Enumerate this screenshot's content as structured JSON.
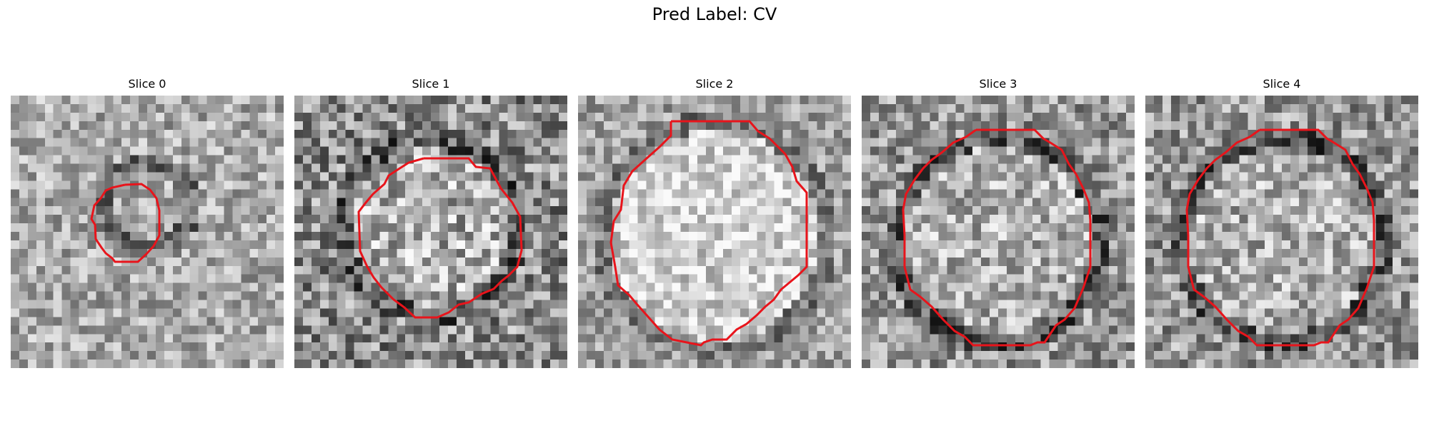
{
  "figure": {
    "title": "Pred Label: CV"
  },
  "slices": [
    {
      "title": "Slice 0",
      "ring": "small"
    },
    {
      "title": "Slice 1",
      "ring": "medium"
    },
    {
      "title": "Slice 2",
      "ring": "large-bright"
    },
    {
      "title": "Slice 3",
      "ring": "large"
    },
    {
      "title": "Slice 4",
      "ring": "large"
    }
  ],
  "colors": {
    "contour": "#e8141b",
    "colormap": "gray"
  },
  "icons": []
}
